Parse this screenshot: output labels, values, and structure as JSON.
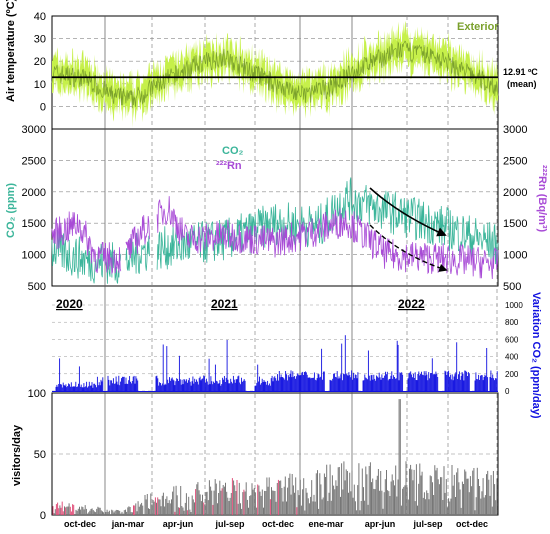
{
  "chart_data": [
    {
      "type": "line",
      "panel": "temperature",
      "ylabel": "Air temperature (ºC)",
      "ylim": [
        -10,
        40
      ],
      "yticks": [
        0,
        10,
        20,
        30,
        40
      ],
      "series": [
        {
          "name": "Exterior",
          "color": "#7aa02c",
          "band_color": "#c6f04a"
        }
      ],
      "mean_line": {
        "value": 12.91,
        "label": "12.91 ºC",
        "sublabel": "(mean)"
      },
      "seasonal_curve": [
        {
          "t": 0.0,
          "v": 15
        },
        {
          "t": 0.08,
          "v": 12
        },
        {
          "t": 0.13,
          "v": 5
        },
        {
          "t": 0.18,
          "v": 3
        },
        {
          "t": 0.24,
          "v": 10
        },
        {
          "t": 0.32,
          "v": 18
        },
        {
          "t": 0.38,
          "v": 22
        },
        {
          "t": 0.44,
          "v": 16
        },
        {
          "t": 0.5,
          "v": 10
        },
        {
          "t": 0.56,
          "v": 5
        },
        {
          "t": 0.62,
          "v": 8
        },
        {
          "t": 0.7,
          "v": 18
        },
        {
          "t": 0.78,
          "v": 25
        },
        {
          "t": 0.86,
          "v": 22
        },
        {
          "t": 0.93,
          "v": 15
        },
        {
          "t": 1.0,
          "v": 8
        }
      ]
    },
    {
      "type": "line",
      "panel": "co2-radon",
      "ylabel_left": "CO₂ (ppm)",
      "ylabel_right": "²²²Rn (Bq/m³)",
      "ylim": [
        500,
        3000
      ],
      "yticks": [
        500,
        1000,
        1500,
        2000,
        2500,
        3000
      ],
      "series": [
        {
          "name": "CO₂",
          "color": "#3bb59a"
        },
        {
          "name": "²²²Rn",
          "color": "#a84bd6"
        }
      ],
      "co2_curve": [
        {
          "t": 0.0,
          "v": 1100
        },
        {
          "t": 0.08,
          "v": 900
        },
        {
          "t": 0.16,
          "v": 850
        },
        {
          "t": 0.2,
          "v": 1050
        },
        {
          "t": 0.3,
          "v": 1150
        },
        {
          "t": 0.4,
          "v": 1250
        },
        {
          "t": 0.5,
          "v": 1500
        },
        {
          "t": 0.6,
          "v": 1450
        },
        {
          "t": 0.66,
          "v": 1900
        },
        {
          "t": 0.75,
          "v": 1700
        },
        {
          "t": 0.85,
          "v": 1500
        },
        {
          "t": 1.0,
          "v": 1150
        }
      ],
      "rn_curve": [
        {
          "t": 0.0,
          "v": 1300
        },
        {
          "t": 0.06,
          "v": 1500
        },
        {
          "t": 0.1,
          "v": 950
        },
        {
          "t": 0.16,
          "v": 950
        },
        {
          "t": 0.2,
          "v": 1350
        },
        {
          "t": 0.26,
          "v": 1750
        },
        {
          "t": 0.3,
          "v": 1250
        },
        {
          "t": 0.4,
          "v": 1300
        },
        {
          "t": 0.5,
          "v": 1200
        },
        {
          "t": 0.6,
          "v": 1400
        },
        {
          "t": 0.66,
          "v": 1550
        },
        {
          "t": 0.75,
          "v": 1000
        },
        {
          "t": 0.85,
          "v": 950
        },
        {
          "t": 1.0,
          "v": 850
        }
      ]
    },
    {
      "type": "bar",
      "panel": "co2-variation",
      "ylabel_right": "Variation CO₂ (ppm/day)",
      "ylim": [
        0,
        1000
      ],
      "yticks": [
        0,
        200,
        400,
        600,
        800,
        1000
      ],
      "series": [
        {
          "name": "Variation CO₂",
          "color": "#1010e0"
        }
      ],
      "year_labels": [
        "2020",
        "2021",
        "2022"
      ]
    },
    {
      "type": "bar",
      "panel": "visitors",
      "ylabel": "visitors/day",
      "ylim": [
        0,
        100
      ],
      "yticks": [
        0,
        50,
        100
      ],
      "series": [
        {
          "name": "visitors/day",
          "color": "#777777",
          "accent_color": "#e0507a"
        }
      ],
      "visitor_curve": [
        {
          "t": 0.0,
          "v": 10
        },
        {
          "t": 0.09,
          "v": 6
        },
        {
          "t": 0.16,
          "v": 3
        },
        {
          "t": 0.22,
          "v": 15
        },
        {
          "t": 0.3,
          "v": 20
        },
        {
          "t": 0.38,
          "v": 24
        },
        {
          "t": 0.5,
          "v": 28
        },
        {
          "t": 0.56,
          "v": 25
        },
        {
          "t": 0.62,
          "v": 35
        },
        {
          "t": 0.7,
          "v": 33
        },
        {
          "t": 0.78,
          "v": 36
        },
        {
          "t": 0.88,
          "v": 32
        },
        {
          "t": 1.0,
          "v": 30
        }
      ]
    }
  ],
  "x_axis": {
    "tick_labels": [
      "oct-dec",
      "jan-mar",
      "apr-jun",
      "jul-sep",
      "oct-dec",
      "ene-mar",
      "apr-jun",
      "jul-sep",
      "oct-dec"
    ]
  }
}
